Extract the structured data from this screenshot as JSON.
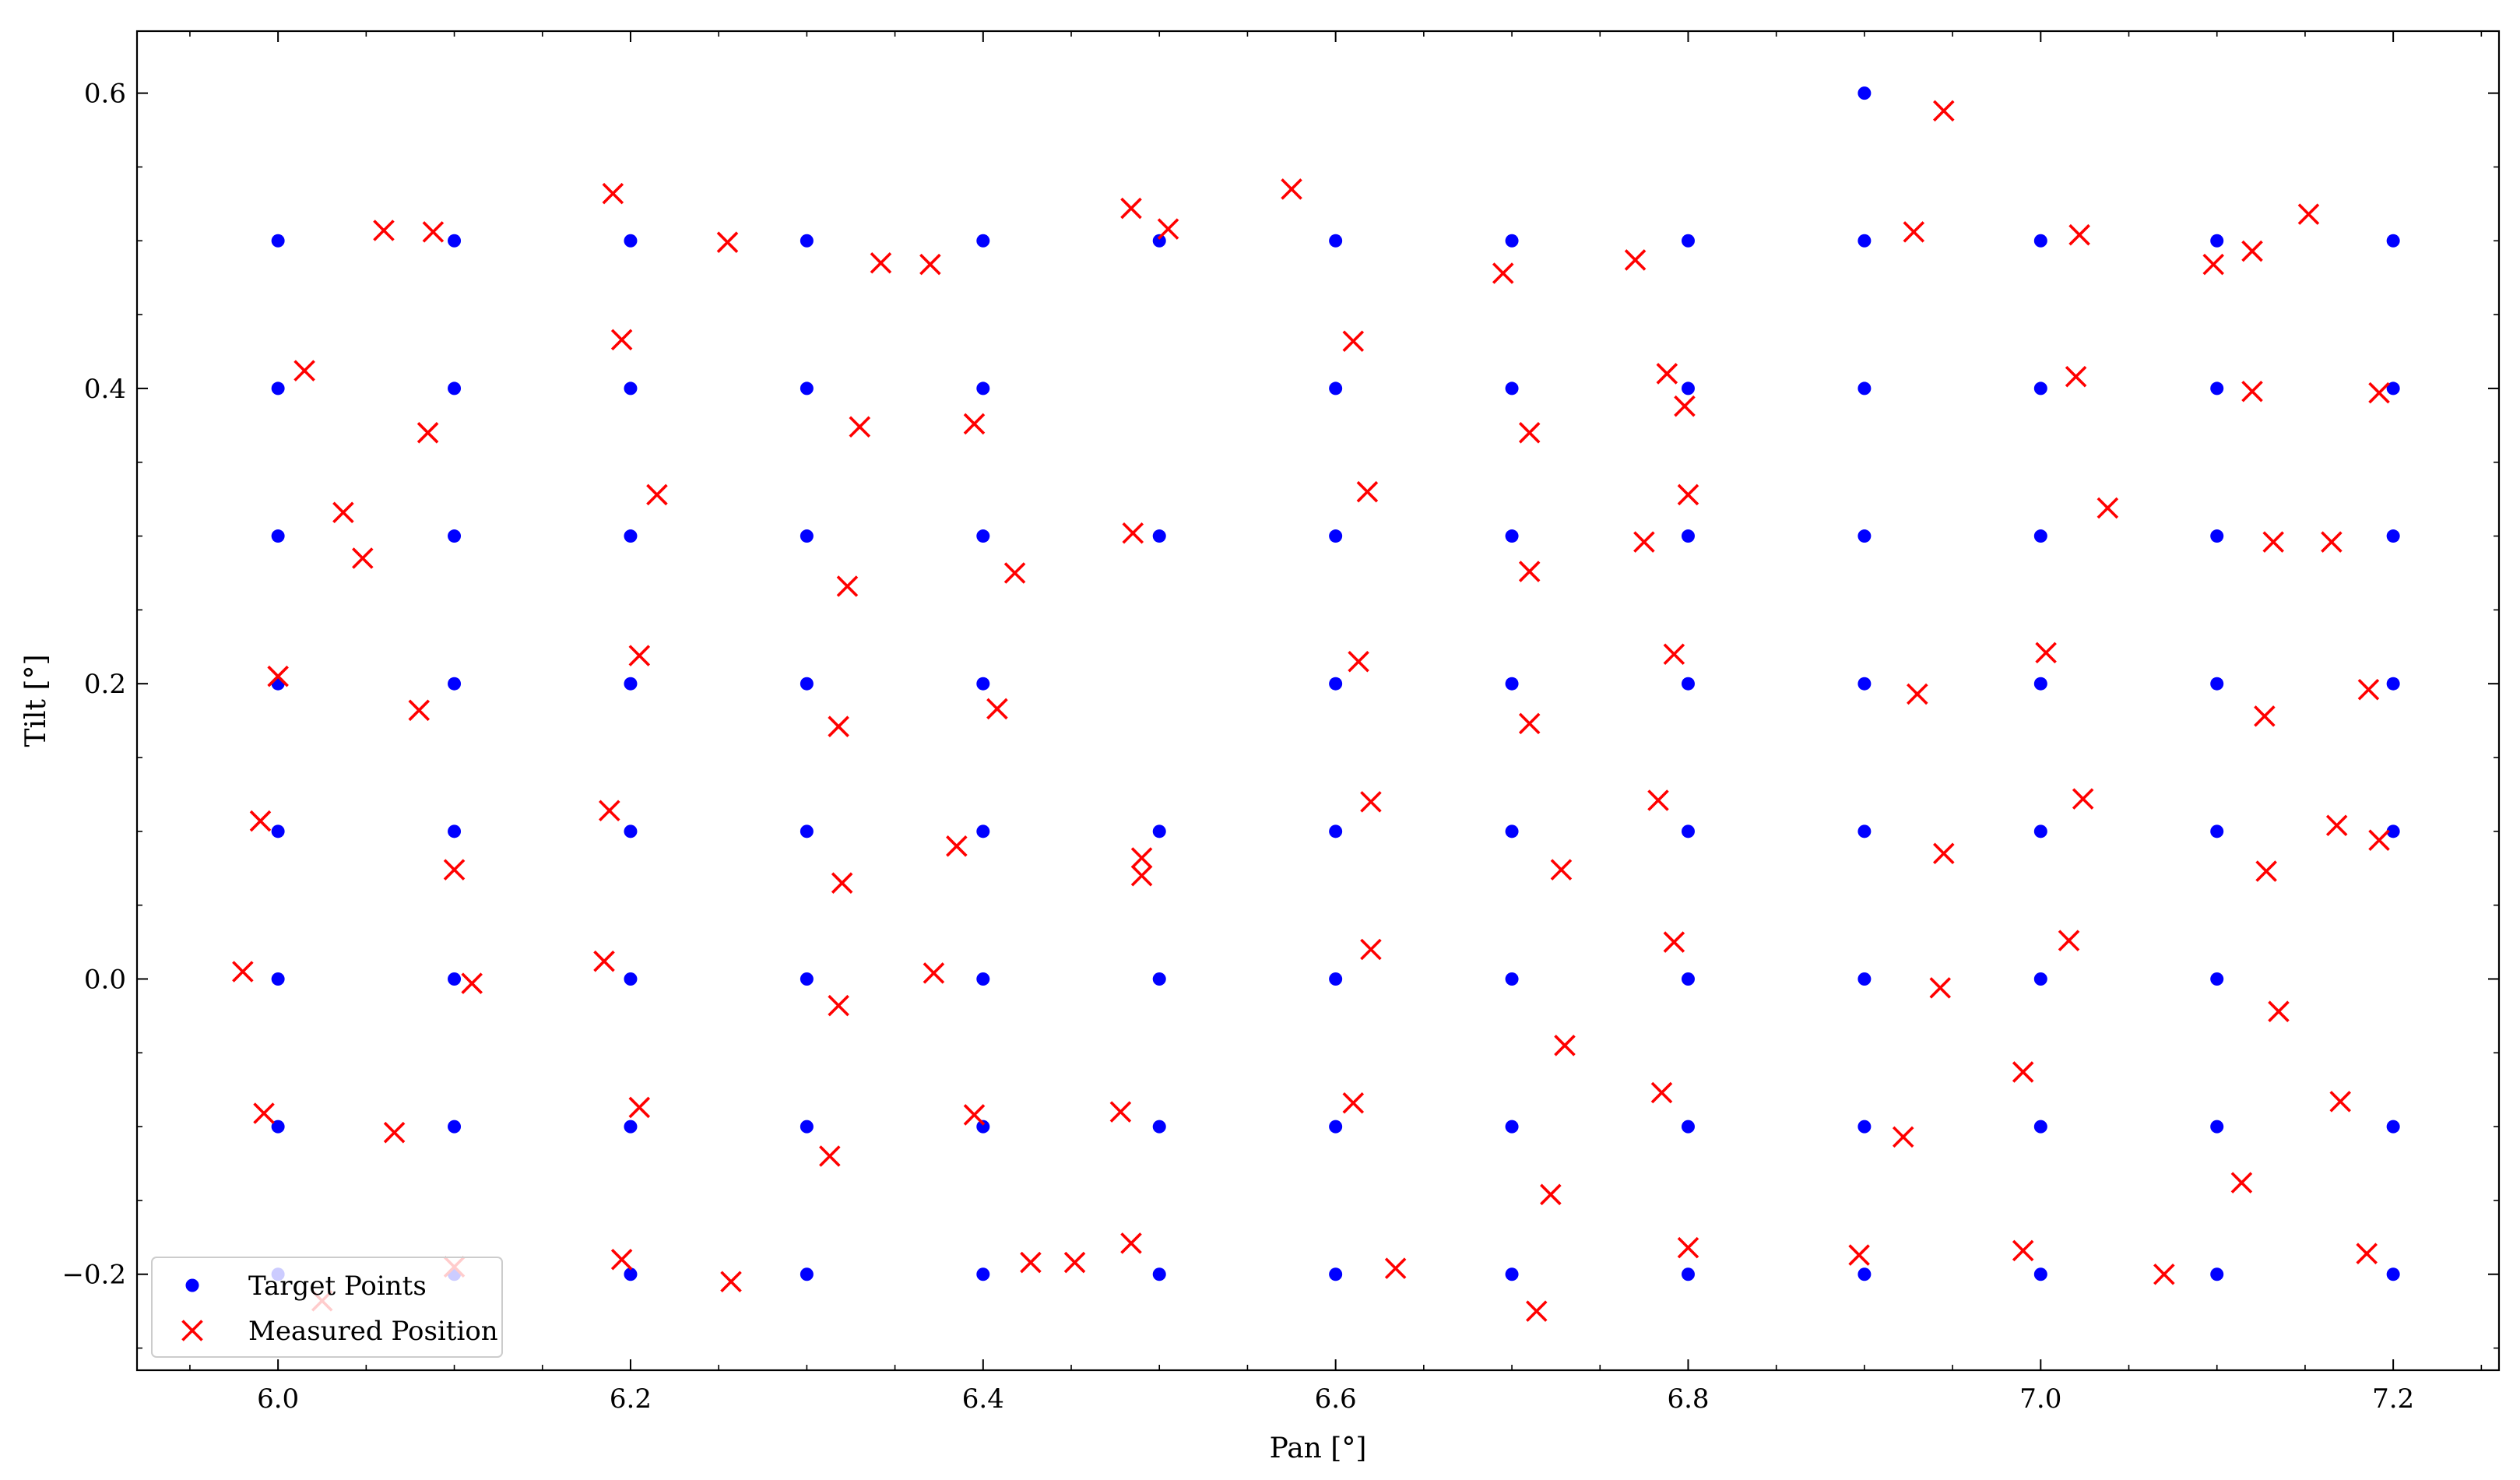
{
  "chart_data": {
    "type": "scatter",
    "title": "",
    "xlabel": "Pan [°]",
    "ylabel": "Tilt [°]",
    "xlim": [
      5.92,
      7.26
    ],
    "ylim": [
      -0.265,
      0.642
    ],
    "xticks": [
      6.0,
      6.2,
      6.4,
      6.6,
      6.8,
      7.0,
      7.2
    ],
    "xtick_labels": [
      "6.0",
      "6.2",
      "6.4",
      "6.6",
      "6.8",
      "7.0",
      "7.2"
    ],
    "yticks": [
      -0.2,
      0.0,
      0.2,
      0.4,
      0.6
    ],
    "ytick_labels": [
      "−0.2",
      "0.0",
      "0.2",
      "0.4",
      "0.6"
    ],
    "grid": false,
    "legend_position": "lower-left",
    "series": [
      {
        "name": "Target Points",
        "marker": "circle",
        "color": "#0000ff",
        "points": [
          [
            6.0,
            0.5
          ],
          [
            6.1,
            0.5
          ],
          [
            6.2,
            0.5
          ],
          [
            6.3,
            0.5
          ],
          [
            6.4,
            0.5
          ],
          [
            6.5,
            0.5
          ],
          [
            6.6,
            0.5
          ],
          [
            6.7,
            0.5
          ],
          [
            6.8,
            0.5
          ],
          [
            6.9,
            0.5
          ],
          [
            7.0,
            0.5
          ],
          [
            7.1,
            0.5
          ],
          [
            7.2,
            0.5
          ],
          [
            6.0,
            0.4
          ],
          [
            6.1,
            0.4
          ],
          [
            6.2,
            0.4
          ],
          [
            6.3,
            0.4
          ],
          [
            6.4,
            0.4
          ],
          [
            6.6,
            0.4
          ],
          [
            6.7,
            0.4
          ],
          [
            6.8,
            0.4
          ],
          [
            6.9,
            0.4
          ],
          [
            7.0,
            0.4
          ],
          [
            7.1,
            0.4
          ],
          [
            7.2,
            0.4
          ],
          [
            6.0,
            0.3
          ],
          [
            6.1,
            0.3
          ],
          [
            6.2,
            0.3
          ],
          [
            6.3,
            0.3
          ],
          [
            6.4,
            0.3
          ],
          [
            6.5,
            0.3
          ],
          [
            6.6,
            0.3
          ],
          [
            6.7,
            0.3
          ],
          [
            6.8,
            0.3
          ],
          [
            6.9,
            0.3
          ],
          [
            7.0,
            0.3
          ],
          [
            7.1,
            0.3
          ],
          [
            7.2,
            0.3
          ],
          [
            6.0,
            0.2
          ],
          [
            6.1,
            0.2
          ],
          [
            6.2,
            0.2
          ],
          [
            6.3,
            0.2
          ],
          [
            6.4,
            0.2
          ],
          [
            6.6,
            0.2
          ],
          [
            6.7,
            0.2
          ],
          [
            6.8,
            0.2
          ],
          [
            6.9,
            0.2
          ],
          [
            7.0,
            0.2
          ],
          [
            7.1,
            0.2
          ],
          [
            7.2,
            0.2
          ],
          [
            6.0,
            0.1
          ],
          [
            6.1,
            0.1
          ],
          [
            6.2,
            0.1
          ],
          [
            6.3,
            0.1
          ],
          [
            6.4,
            0.1
          ],
          [
            6.5,
            0.1
          ],
          [
            6.6,
            0.1
          ],
          [
            6.7,
            0.1
          ],
          [
            6.8,
            0.1
          ],
          [
            6.9,
            0.1
          ],
          [
            7.0,
            0.1
          ],
          [
            7.1,
            0.1
          ],
          [
            7.2,
            0.1
          ],
          [
            6.0,
            0.0
          ],
          [
            6.1,
            0.0
          ],
          [
            6.2,
            0.0
          ],
          [
            6.3,
            0.0
          ],
          [
            6.4,
            0.0
          ],
          [
            6.5,
            0.0
          ],
          [
            6.6,
            0.0
          ],
          [
            6.7,
            0.0
          ],
          [
            6.8,
            0.0
          ],
          [
            6.9,
            0.0
          ],
          [
            7.0,
            0.0
          ],
          [
            7.1,
            0.0
          ],
          [
            6.0,
            -0.1
          ],
          [
            6.1,
            -0.1
          ],
          [
            6.2,
            -0.1
          ],
          [
            6.3,
            -0.1
          ],
          [
            6.4,
            -0.1
          ],
          [
            6.5,
            -0.1
          ],
          [
            6.6,
            -0.1
          ],
          [
            6.7,
            -0.1
          ],
          [
            6.8,
            -0.1
          ],
          [
            6.9,
            -0.1
          ],
          [
            7.0,
            -0.1
          ],
          [
            7.1,
            -0.1
          ],
          [
            7.2,
            -0.1
          ],
          [
            6.0,
            -0.2
          ],
          [
            6.1,
            -0.2
          ],
          [
            6.2,
            -0.2
          ],
          [
            6.3,
            -0.2
          ],
          [
            6.4,
            -0.2
          ],
          [
            6.5,
            -0.2
          ],
          [
            6.6,
            -0.2
          ],
          [
            6.7,
            -0.2
          ],
          [
            6.8,
            -0.2
          ],
          [
            6.9,
            -0.2
          ],
          [
            7.0,
            -0.2
          ],
          [
            7.1,
            -0.2
          ],
          [
            7.2,
            -0.2
          ],
          [
            6.9,
            0.6
          ]
        ]
      },
      {
        "name": "Measured Position",
        "marker": "x",
        "color": "#ff0000",
        "points": [
          [
            6.06,
            0.507
          ],
          [
            6.088,
            0.506
          ],
          [
            6.19,
            0.532
          ],
          [
            6.255,
            0.499
          ],
          [
            6.342,
            0.485
          ],
          [
            6.37,
            0.484
          ],
          [
            6.484,
            0.522
          ],
          [
            6.505,
            0.508
          ],
          [
            6.575,
            0.535
          ],
          [
            6.695,
            0.478
          ],
          [
            6.77,
            0.487
          ],
          [
            6.928,
            0.506
          ],
          [
            6.945,
            0.588
          ],
          [
            7.022,
            0.504
          ],
          [
            7.098,
            0.484
          ],
          [
            7.12,
            0.493
          ],
          [
            7.152,
            0.518
          ],
          [
            6.015,
            0.412
          ],
          [
            6.085,
            0.37
          ],
          [
            6.195,
            0.433
          ],
          [
            6.33,
            0.374
          ],
          [
            6.395,
            0.376
          ],
          [
            6.61,
            0.432
          ],
          [
            6.71,
            0.37
          ],
          [
            6.788,
            0.41
          ],
          [
            6.798,
            0.388
          ],
          [
            7.02,
            0.408
          ],
          [
            7.12,
            0.398
          ],
          [
            7.192,
            0.397
          ],
          [
            6.037,
            0.316
          ],
          [
            6.048,
            0.285
          ],
          [
            6.215,
            0.328
          ],
          [
            6.323,
            0.266
          ],
          [
            6.418,
            0.275
          ],
          [
            6.485,
            0.302
          ],
          [
            6.618,
            0.33
          ],
          [
            6.71,
            0.276
          ],
          [
            6.775,
            0.296
          ],
          [
            6.8,
            0.328
          ],
          [
            7.038,
            0.319
          ],
          [
            7.132,
            0.296
          ],
          [
            7.165,
            0.296
          ],
          [
            6.0,
            0.205
          ],
          [
            6.08,
            0.182
          ],
          [
            6.205,
            0.219
          ],
          [
            6.318,
            0.171
          ],
          [
            6.408,
            0.183
          ],
          [
            6.613,
            0.215
          ],
          [
            6.71,
            0.173
          ],
          [
            6.792,
            0.22
          ],
          [
            6.93,
            0.193
          ],
          [
            7.003,
            0.221
          ],
          [
            7.127,
            0.178
          ],
          [
            7.186,
            0.196
          ],
          [
            5.99,
            0.107
          ],
          [
            6.1,
            0.074
          ],
          [
            6.188,
            0.114
          ],
          [
            6.32,
            0.065
          ],
          [
            6.385,
            0.09
          ],
          [
            6.49,
            0.082
          ],
          [
            6.49,
            0.07
          ],
          [
            6.62,
            0.12
          ],
          [
            6.728,
            0.074
          ],
          [
            6.783,
            0.121
          ],
          [
            6.945,
            0.085
          ],
          [
            7.024,
            0.122
          ],
          [
            7.128,
            0.073
          ],
          [
            7.168,
            0.104
          ],
          [
            7.192,
            0.094
          ],
          [
            5.98,
            0.005
          ],
          [
            6.11,
            -0.003
          ],
          [
            6.185,
            0.012
          ],
          [
            6.318,
            -0.018
          ],
          [
            6.372,
            0.004
          ],
          [
            6.62,
            0.02
          ],
          [
            6.73,
            -0.045
          ],
          [
            6.792,
            0.025
          ],
          [
            6.943,
            -0.006
          ],
          [
            7.016,
            0.026
          ],
          [
            7.135,
            -0.022
          ],
          [
            5.992,
            -0.091
          ],
          [
            6.066,
            -0.104
          ],
          [
            6.205,
            -0.087
          ],
          [
            6.313,
            -0.12
          ],
          [
            6.395,
            -0.092
          ],
          [
            6.478,
            -0.09
          ],
          [
            6.61,
            -0.084
          ],
          [
            6.722,
            -0.146
          ],
          [
            6.785,
            -0.077
          ],
          [
            6.922,
            -0.107
          ],
          [
            6.99,
            -0.063
          ],
          [
            7.114,
            -0.138
          ],
          [
            7.17,
            -0.083
          ],
          [
            6.025,
            -0.218
          ],
          [
            6.1,
            -0.195
          ],
          [
            6.195,
            -0.19
          ],
          [
            6.257,
            -0.205
          ],
          [
            6.427,
            -0.192
          ],
          [
            6.452,
            -0.192
          ],
          [
            6.484,
            -0.179
          ],
          [
            6.634,
            -0.196
          ],
          [
            6.714,
            -0.225
          ],
          [
            6.8,
            -0.182
          ],
          [
            6.897,
            -0.187
          ],
          [
            6.99,
            -0.184
          ],
          [
            7.07,
            -0.2
          ],
          [
            7.185,
            -0.186
          ]
        ]
      }
    ]
  }
}
